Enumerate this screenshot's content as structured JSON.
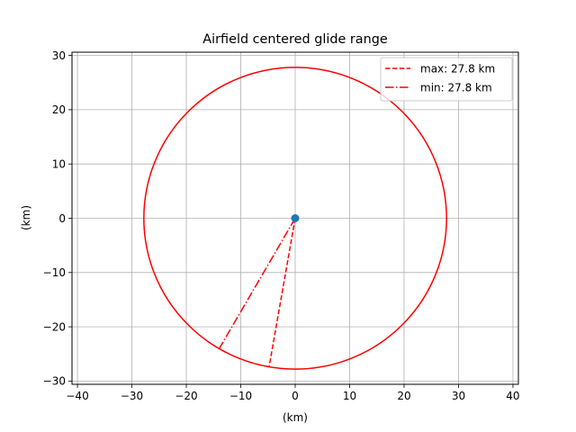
{
  "chart_data": {
    "type": "line",
    "title": "Airfield centered glide range",
    "xlabel": "(km)",
    "ylabel": "(km)",
    "xlim": [
      -41,
      41
    ],
    "ylim": [
      -30.6,
      30.6
    ],
    "xticks": [
      -40,
      -30,
      -20,
      -10,
      0,
      10,
      20,
      30,
      40
    ],
    "yticks": [
      -30,
      -20,
      -10,
      0,
      10,
      20,
      30
    ],
    "xtick_labels": [
      "−40",
      "−30",
      "−20",
      "−10",
      "0",
      "10",
      "20",
      "30",
      "40"
    ],
    "ytick_labels": [
      "−30",
      "−20",
      "−10",
      "0",
      "10",
      "20",
      "30"
    ],
    "grid": true,
    "legend_position": "top-right",
    "circle": {
      "center": [
        0,
        0
      ],
      "radius": 27.8,
      "color": "#ff0000"
    },
    "airfield": {
      "x": 0,
      "y": 0,
      "color": "#1f77b4"
    },
    "series": [
      {
        "name": "max: 27.8 km",
        "style": "dashed",
        "color": "#ff0000",
        "x": [
          0,
          -4.8
        ],
        "y": [
          0,
          -27.4
        ]
      },
      {
        "name": "min: 27.8 km",
        "style": "dashdot",
        "color": "#ff0000",
        "x": [
          0,
          -14.0
        ],
        "y": [
          0,
          -24.1
        ]
      }
    ]
  }
}
